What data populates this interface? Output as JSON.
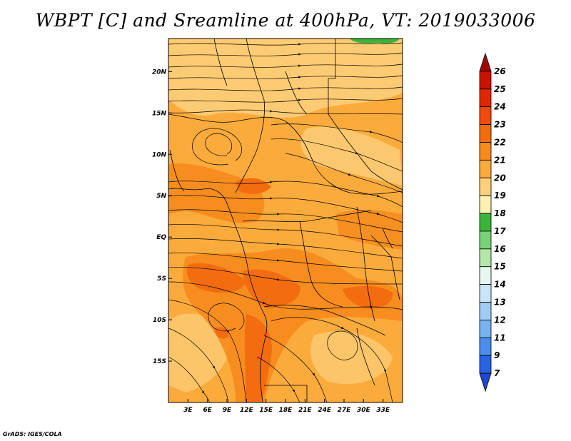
{
  "title": "WBPT [C] and Sreamline at 400hPa, VT: 2019033006",
  "credit": "GrADS: IGES/COLA",
  "map": {
    "lon_range": [
      0,
      36
    ],
    "lat_range": [
      -20,
      24
    ],
    "lat_ticks": [
      {
        "value": 20,
        "label": "20N"
      },
      {
        "value": 15,
        "label": "15N"
      },
      {
        "value": 10,
        "label": "10N"
      },
      {
        "value": 5,
        "label": "5N"
      },
      {
        "value": 0,
        "label": "EQ"
      },
      {
        "value": -5,
        "label": "5S"
      },
      {
        "value": -10,
        "label": "10S"
      },
      {
        "value": -15,
        "label": "15S"
      }
    ],
    "lon_ticks": [
      {
        "value": 3,
        "label": "3E"
      },
      {
        "value": 6,
        "label": "6E"
      },
      {
        "value": 9,
        "label": "9E"
      },
      {
        "value": 12,
        "label": "12E"
      },
      {
        "value": 15,
        "label": "15E"
      },
      {
        "value": 18,
        "label": "18E"
      },
      {
        "value": 21,
        "label": "21E"
      },
      {
        "value": 24,
        "label": "24E"
      },
      {
        "value": 27,
        "label": "27E"
      },
      {
        "value": 30,
        "label": "30E"
      },
      {
        "value": 33,
        "label": "33E"
      }
    ]
  },
  "colorbar": {
    "levels": [
      "26",
      "25",
      "24",
      "23",
      "22",
      "21",
      "20",
      "19",
      "18",
      "17",
      "16",
      "15",
      "14",
      "13",
      "12",
      "11",
      "9",
      "7"
    ],
    "colors": [
      "#a50000",
      "#c81400",
      "#e02800",
      "#f04a0c",
      "#f46c10",
      "#f78a1c",
      "#fbab3c",
      "#fdd07c",
      "#fef0b0",
      "#3cb43c",
      "#78d278",
      "#b4e6a8",
      "#e6f6f0",
      "#c8e6f8",
      "#a0ccf4",
      "#78b2f0",
      "#4b8cec",
      "#2a62e4",
      "#1e46d2"
    ]
  },
  "field": {
    "background_color": "#fbab3c",
    "warm_color": "#f78a1c",
    "hot_color": "#f46c10",
    "cool_color": "#fdd07c",
    "green_color": "#3cb43c"
  }
}
